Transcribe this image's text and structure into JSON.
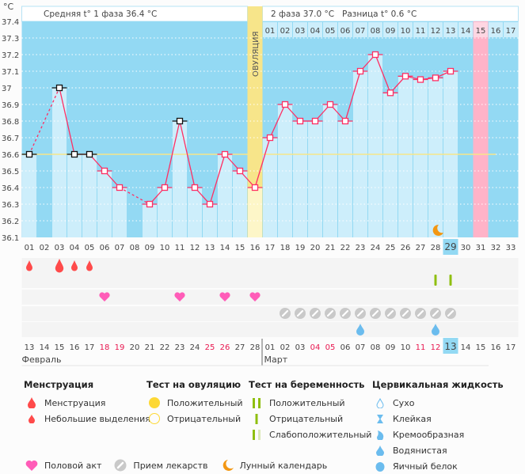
{
  "axis": {
    "unit": "°C",
    "y_ticks": [
      "37.4",
      "37.3",
      "37.2",
      "37.1",
      "37",
      "36.9",
      "36.8",
      "36.7",
      "36.6",
      "36.5",
      "36.4",
      "36.3",
      "36.2",
      "36.1"
    ]
  },
  "header": {
    "phase1": "Средняя t° 1 фаза 36.4 °C",
    "phase2": "2 фаза 37.0 °C",
    "diff": "Разница t° 0.6 °C",
    "ovulation_label": "ОВУЛЯЦИЯ"
  },
  "chart_data": {
    "type": "bar",
    "title": "",
    "xlabel": "",
    "ylabel": "°C",
    "ylim": [
      36.1,
      37.4
    ],
    "coverline": 36.6,
    "cycle_days": [
      "01",
      "02",
      "03",
      "04",
      "05",
      "06",
      "07",
      "08",
      "09",
      "10",
      "11",
      "12",
      "13",
      "14",
      "15",
      "16",
      "17",
      "18",
      "19",
      "20",
      "21",
      "22",
      "23",
      "24",
      "25",
      "26",
      "27",
      "28",
      "29",
      "30",
      "31",
      "32",
      "33"
    ],
    "temps": [
      36.6,
      null,
      37.0,
      36.6,
      36.6,
      36.5,
      36.4,
      null,
      36.3,
      36.4,
      36.8,
      36.4,
      36.3,
      36.6,
      36.5,
      36.4,
      36.7,
      36.9,
      36.8,
      36.8,
      36.9,
      36.8,
      37.1,
      37.2,
      36.97,
      37.07,
      37.05,
      37.06,
      37.1,
      null,
      null,
      null,
      null
    ],
    "excluded_days": [
      1,
      3,
      4,
      5,
      11
    ],
    "ovulation_day": 16,
    "today_day": 29,
    "expected_period_day": 31,
    "lunar_day": 28,
    "luteal_days": [
      "01",
      "02",
      "03",
      "04",
      "05",
      "06",
      "07",
      "08",
      "09",
      "10",
      "11",
      "12",
      "13",
      "14",
      "15",
      "16",
      "17"
    ]
  },
  "dates": [
    "13",
    "14",
    "15",
    "16",
    "17",
    "18",
    "19",
    "20",
    "21",
    "22",
    "23",
    "24",
    "25",
    "26",
    "27",
    "28",
    "01",
    "02",
    "03",
    "04",
    "05",
    "06",
    "07",
    "08",
    "09",
    "10",
    "11",
    "12",
    "13",
    "14",
    "15",
    "16",
    "17"
  ],
  "weekend_idx": [
    5,
    6,
    12,
    13,
    19,
    20,
    26,
    27
  ],
  "months": {
    "feb": "Февраль",
    "mar": "Март"
  },
  "rows": {
    "menstruation": {
      "1": "small",
      "3": "large",
      "4": "small",
      "5": "small"
    },
    "pregnancy_test": [
      28,
      29
    ],
    "intercourse": [
      6,
      11,
      14,
      16
    ],
    "medication": [
      18,
      19,
      20,
      21,
      22,
      23,
      24,
      25,
      26,
      27,
      28,
      29
    ],
    "cervical_watery": [
      23,
      28
    ]
  },
  "colors": {
    "bg": "#93d9f3",
    "bar": "#cdeefb",
    "ovu": "#f7e58a",
    "pink": "#ffb3c8",
    "line": "#ff2e63",
    "blood": "#ff4a4a",
    "heart": "#ff5cb8",
    "pill": "#c9c9c9",
    "test": "#8fbf10",
    "water": "#6bbcee",
    "moon": "#f39712"
  },
  "legend": {
    "menstruation": {
      "title": "Менструация",
      "items": [
        "Менструация",
        "Небольшие выделения"
      ]
    },
    "ovulation_test": {
      "title": "Тест на овуляцию",
      "items": [
        "Положительный",
        "Отрицательный"
      ]
    },
    "pregnancy_test": {
      "title": "Тест на беременность",
      "items": [
        "Положительный",
        "Отрицательный",
        "Слабоположительный"
      ]
    },
    "cervical": {
      "title": "Цервикальная жидкость",
      "items": [
        "Сухо",
        "Клейкая",
        "Кремообразная",
        "Водянистая",
        "Яичный белок"
      ]
    },
    "other": [
      "Половой акт",
      "Прием лекарств",
      "Лунный календарь"
    ]
  }
}
